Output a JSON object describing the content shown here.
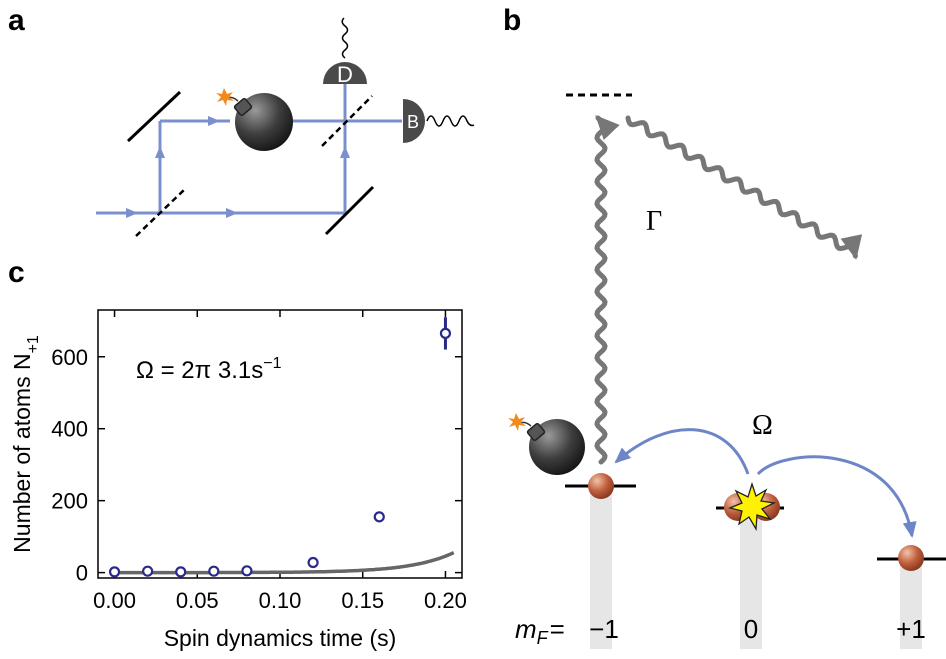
{
  "panel_labels": {
    "a": "a",
    "b": "b",
    "c": "c"
  },
  "panel_a": {
    "detector_d": "D",
    "detector_b": "B"
  },
  "panel_b": {
    "gamma": "Γ",
    "omega": "Ω",
    "mf_prefix": "m",
    "mf_sub": "F",
    "mf_eq": "=",
    "levels": [
      "−1",
      "0",
      "+1"
    ]
  },
  "colors": {
    "beam": "#7b8fcf",
    "arrow": "#6d86c8",
    "wave": "#777777",
    "fit": "#666666",
    "data": "#2a2a8a",
    "atom": "#b5563a",
    "column": "#e6e6e6"
  },
  "chart_data": {
    "type": "scatter",
    "annotation": "Ω = 2π 3.1s",
    "annotation_exp": "−1",
    "xlabel": "Spin dynamics time (s)",
    "ylabel": "Number of atoms N",
    "ylabel_sub": "+1",
    "xlim": [
      -0.01,
      0.21
    ],
    "ylim": [
      -15,
      730
    ],
    "xticks": [
      "0.00",
      "0.05",
      "0.10",
      "0.15",
      "0.20"
    ],
    "yticks": [
      "0",
      "200",
      "400",
      "600"
    ],
    "grid": false,
    "series": [
      {
        "x": [
          0.0,
          0.02,
          0.04,
          0.06,
          0.08,
          0.12,
          0.16,
          0.2
        ],
        "y": [
          2,
          4,
          2,
          4,
          5,
          28,
          155,
          665
        ],
        "yerr": [
          0,
          0,
          0,
          0,
          0,
          0,
          0,
          45
        ]
      }
    ],
    "fit_curve": {
      "omega_per_s": 19.48,
      "scale": 0.0755
    }
  }
}
